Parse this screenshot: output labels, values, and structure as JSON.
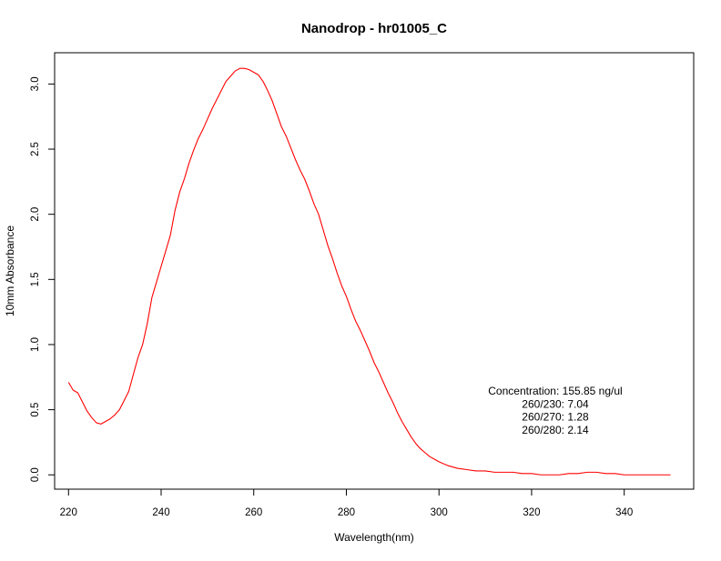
{
  "chart_data": {
    "type": "line",
    "title": "Nanodrop - hr01005_C",
    "xlabel": "Wavelength(nm)",
    "ylabel": "10mm Absorbance",
    "xlim": [
      217,
      355
    ],
    "ylim": [
      -0.11,
      3.24
    ],
    "xticks": [
      220,
      240,
      260,
      280,
      300,
      320,
      340
    ],
    "yticks": [
      0.0,
      0.5,
      1.0,
      1.5,
      2.0,
      2.5,
      3.0
    ],
    "xtick_labels": [
      "220",
      "240",
      "260",
      "280",
      "300",
      "320",
      "340"
    ],
    "ytick_labels": [
      "0.0",
      "0.5",
      "1.0",
      "1.5",
      "2.0",
      "2.5",
      "3.0"
    ],
    "grid": false,
    "series": [
      {
        "color": "#ff0000",
        "x": [
          220,
          221,
          222,
          223,
          224,
          225,
          226,
          227,
          228,
          229,
          230,
          231,
          232,
          233,
          234,
          235,
          236,
          237,
          238,
          239,
          240,
          241,
          242,
          243,
          244,
          245,
          246,
          247,
          248,
          249,
          250,
          251,
          252,
          253,
          254,
          255,
          256,
          257,
          258,
          259,
          260,
          261,
          262,
          263,
          264,
          265,
          266,
          267,
          268,
          269,
          270,
          271,
          272,
          273,
          274,
          275,
          276,
          277,
          278,
          279,
          280,
          281,
          282,
          283,
          284,
          285,
          286,
          287,
          288,
          289,
          290,
          291,
          292,
          293,
          294,
          295,
          296,
          297,
          298,
          299,
          300,
          302,
          304,
          306,
          308,
          310,
          312,
          314,
          316,
          318,
          320,
          322,
          324,
          326,
          328,
          330,
          332,
          334,
          336,
          338,
          340,
          342,
          344,
          346,
          348,
          350
        ],
        "y": [
          0.71,
          0.65,
          0.63,
          0.56,
          0.49,
          0.44,
          0.4,
          0.39,
          0.41,
          0.43,
          0.46,
          0.5,
          0.57,
          0.64,
          0.77,
          0.9,
          1.0,
          1.16,
          1.36,
          1.48,
          1.6,
          1.72,
          1.84,
          2.03,
          2.17,
          2.27,
          2.39,
          2.49,
          2.58,
          2.65,
          2.73,
          2.81,
          2.88,
          2.95,
          3.02,
          3.06,
          3.1,
          3.12,
          3.12,
          3.11,
          3.09,
          3.07,
          3.02,
          2.95,
          2.87,
          2.77,
          2.67,
          2.6,
          2.51,
          2.42,
          2.34,
          2.27,
          2.18,
          2.08,
          2.0,
          1.88,
          1.76,
          1.66,
          1.55,
          1.45,
          1.37,
          1.27,
          1.18,
          1.11,
          1.03,
          0.95,
          0.86,
          0.79,
          0.71,
          0.63,
          0.56,
          0.48,
          0.41,
          0.35,
          0.29,
          0.24,
          0.2,
          0.17,
          0.14,
          0.12,
          0.1,
          0.07,
          0.05,
          0.04,
          0.03,
          0.03,
          0.02,
          0.02,
          0.02,
          0.01,
          0.01,
          0.0,
          0.0,
          0.0,
          0.01,
          0.01,
          0.02,
          0.02,
          0.01,
          0.01,
          0.0,
          0.0,
          0.0,
          0.0,
          0.0,
          0.0
        ]
      }
    ],
    "annotations": [
      "Concentration: 155.85 ng/ul",
      "260/230: 7.04",
      "260/270: 1.28",
      "260/280: 2.14"
    ]
  }
}
